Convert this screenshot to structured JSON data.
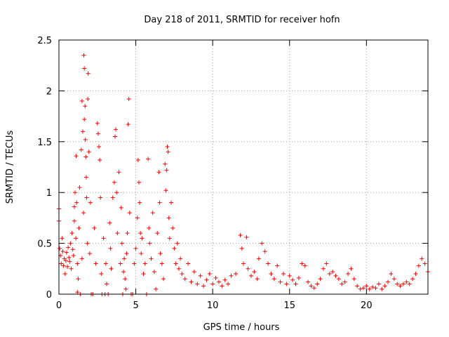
{
  "chart_data": {
    "type": "scatter",
    "title": "Day 218 of 2011, SRMTID for receiver hofn",
    "xlabel": "GPS time / hours",
    "ylabel": "SRMTID / TECUs",
    "xlim": [
      0,
      24
    ],
    "ylim": [
      0,
      2.5
    ],
    "xticks": [
      0,
      5,
      10,
      15,
      20
    ],
    "yticks": [
      0,
      0.5,
      1,
      1.5,
      2,
      2.5
    ],
    "xtick_labels": [
      "0",
      "5",
      "10",
      "15",
      "20"
    ],
    "ytick_labels": [
      "0",
      "0.5",
      "1",
      "1.5",
      "2",
      "2.5"
    ],
    "grid": true,
    "marker": "+",
    "series": [
      {
        "name": "SRMTID",
        "color": "#ff0000",
        "points": [
          [
            0.0,
            0.72
          ],
          [
            0.0,
            0.84
          ],
          [
            0.05,
            0.45
          ],
          [
            0.1,
            0.38
          ],
          [
            0.15,
            0.3
          ],
          [
            0.2,
            0.55
          ],
          [
            0.25,
            0.42
          ],
          [
            0.3,
            0.28
          ],
          [
            0.35,
            0.35
          ],
          [
            0.4,
            0.2
          ],
          [
            0.45,
            0.33
          ],
          [
            0.5,
            0.41
          ],
          [
            0.55,
            0.27
          ],
          [
            0.6,
            0.46
          ],
          [
            0.65,
            0.36
          ],
          [
            0.7,
            0.32
          ],
          [
            0.75,
            0.5
          ],
          [
            0.8,
            0.25
          ],
          [
            0.85,
            0.6
          ],
          [
            0.9,
            0.44
          ],
          [
            0.95,
            0.38
          ],
          [
            1.0,
            0.72
          ],
          [
            1.0,
            0.86
          ],
          [
            1.05,
            1.0
          ],
          [
            1.1,
            0.55
          ],
          [
            1.12,
            1.36
          ],
          [
            1.15,
            0.9
          ],
          [
            1.2,
            0.3
          ],
          [
            1.2,
            0.02
          ],
          [
            1.25,
            0.15
          ],
          [
            1.3,
            0.65
          ],
          [
            1.35,
            1.05
          ],
          [
            1.4,
            0.0
          ],
          [
            1.45,
            1.42
          ],
          [
            1.5,
            0.35
          ],
          [
            1.5,
            1.9
          ],
          [
            1.55,
            1.6
          ],
          [
            1.6,
            0.8
          ],
          [
            1.62,
            2.35
          ],
          [
            1.65,
            2.22
          ],
          [
            1.65,
            1.72
          ],
          [
            1.7,
            1.85
          ],
          [
            1.72,
            1.52
          ],
          [
            1.75,
            1.35
          ],
          [
            1.78,
            1.15
          ],
          [
            1.8,
            0.95
          ],
          [
            1.85,
            0.5
          ],
          [
            1.88,
            1.92
          ],
          [
            1.9,
            2.17
          ],
          [
            1.95,
            1.4
          ],
          [
            2.0,
            0.4
          ],
          [
            2.05,
            0.9
          ],
          [
            2.1,
            0.0
          ],
          [
            2.2,
            0.0
          ],
          [
            2.3,
            0.65
          ],
          [
            2.4,
            0.3
          ],
          [
            2.5,
            1.68
          ],
          [
            2.55,
            1.58
          ],
          [
            2.6,
            1.45
          ],
          [
            2.65,
            1.32
          ],
          [
            2.7,
            0.95
          ],
          [
            2.75,
            0.2
          ],
          [
            2.8,
            0.0
          ],
          [
            2.9,
            0.55
          ],
          [
            3.0,
            0.0
          ],
          [
            3.05,
            0.3
          ],
          [
            3.1,
            0.1
          ],
          [
            3.2,
            0.0
          ],
          [
            3.3,
            0.7
          ],
          [
            3.35,
            0.45
          ],
          [
            3.4,
            0.25
          ],
          [
            3.5,
            0.95
          ],
          [
            3.6,
            1.1
          ],
          [
            3.65,
            1.55
          ],
          [
            3.7,
            1.62
          ],
          [
            3.75,
            1.0
          ],
          [
            3.8,
            0.6
          ],
          [
            3.9,
            1.2
          ],
          [
            4.0,
            0.3
          ],
          [
            4.05,
            0.85
          ],
          [
            4.1,
            0.5
          ],
          [
            4.15,
            0.0
          ],
          [
            4.2,
            0.22
          ],
          [
            4.25,
            0.35
          ],
          [
            4.3,
            0.15
          ],
          [
            4.35,
            0.05
          ],
          [
            4.4,
            0.4
          ],
          [
            4.45,
            0.6
          ],
          [
            4.5,
            1.67
          ],
          [
            4.55,
            1.92
          ],
          [
            4.6,
            0.8
          ],
          [
            4.7,
            0.0
          ],
          [
            4.8,
            0.0
          ],
          [
            4.9,
            0.3
          ],
          [
            5.0,
            0.45
          ],
          [
            5.1,
            0.75
          ],
          [
            5.15,
            1.32
          ],
          [
            5.2,
            1.1
          ],
          [
            5.25,
            0.9
          ],
          [
            5.3,
            0.6
          ],
          [
            5.35,
            0.4
          ],
          [
            5.4,
            0.55
          ],
          [
            5.5,
            0.2
          ],
          [
            5.6,
            0.3
          ],
          [
            5.7,
            0.0
          ],
          [
            5.8,
            1.33
          ],
          [
            5.85,
            0.65
          ],
          [
            5.9,
            0.5
          ],
          [
            6.0,
            0.35
          ],
          [
            6.1,
            0.8
          ],
          [
            6.2,
            0.22
          ],
          [
            6.3,
            0.05
          ],
          [
            6.4,
            0.6
          ],
          [
            6.5,
            1.2
          ],
          [
            6.55,
            0.9
          ],
          [
            6.6,
            0.4
          ],
          [
            6.7,
            0.3
          ],
          [
            6.8,
            0.15
          ],
          [
            6.9,
            1.28
          ],
          [
            6.95,
            1.02
          ],
          [
            7.0,
            1.22
          ],
          [
            7.05,
            1.45
          ],
          [
            7.1,
            1.4
          ],
          [
            7.15,
            0.75
          ],
          [
            7.2,
            0.55
          ],
          [
            7.3,
            0.9
          ],
          [
            7.4,
            0.65
          ],
          [
            7.5,
            0.45
          ],
          [
            7.6,
            0.3
          ],
          [
            7.7,
            0.5
          ],
          [
            7.8,
            0.25
          ],
          [
            7.9,
            0.35
          ],
          [
            8.0,
            0.2
          ],
          [
            8.2,
            0.15
          ],
          [
            8.4,
            0.3
          ],
          [
            8.6,
            0.12
          ],
          [
            8.8,
            0.22
          ],
          [
            9.0,
            0.1
          ],
          [
            9.2,
            0.18
          ],
          [
            9.4,
            0.08
          ],
          [
            9.6,
            0.14
          ],
          [
            9.8,
            0.2
          ],
          [
            10.0,
            0.1
          ],
          [
            10.2,
            0.16
          ],
          [
            10.4,
            0.12
          ],
          [
            10.6,
            0.08
          ],
          [
            10.8,
            0.14
          ],
          [
            11.0,
            0.1
          ],
          [
            11.2,
            0.18
          ],
          [
            11.5,
            0.2
          ],
          [
            11.8,
            0.58
          ],
          [
            11.9,
            0.45
          ],
          [
            12.0,
            0.3
          ],
          [
            12.2,
            0.56
          ],
          [
            12.3,
            0.25
          ],
          [
            12.5,
            0.18
          ],
          [
            12.7,
            0.22
          ],
          [
            12.9,
            0.15
          ],
          [
            13.0,
            0.35
          ],
          [
            13.2,
            0.5
          ],
          [
            13.4,
            0.42
          ],
          [
            13.6,
            0.3
          ],
          [
            13.8,
            0.2
          ],
          [
            14.0,
            0.15
          ],
          [
            14.2,
            0.28
          ],
          [
            14.4,
            0.12
          ],
          [
            14.6,
            0.2
          ],
          [
            14.8,
            0.1
          ],
          [
            15.0,
            0.18
          ],
          [
            15.2,
            0.14
          ],
          [
            15.4,
            0.1
          ],
          [
            15.6,
            0.16
          ],
          [
            15.8,
            0.3
          ],
          [
            16.0,
            0.28
          ],
          [
            16.2,
            0.12
          ],
          [
            16.4,
            0.08
          ],
          [
            16.6,
            0.06
          ],
          [
            16.8,
            0.1
          ],
          [
            17.0,
            0.15
          ],
          [
            17.2,
            0.25
          ],
          [
            17.4,
            0.3
          ],
          [
            17.6,
            0.2
          ],
          [
            17.8,
            0.22
          ],
          [
            18.0,
            0.18
          ],
          [
            18.2,
            0.15
          ],
          [
            18.4,
            0.1
          ],
          [
            18.6,
            0.12
          ],
          [
            18.8,
            0.2
          ],
          [
            19.0,
            0.25
          ],
          [
            19.2,
            0.15
          ],
          [
            19.4,
            0.08
          ],
          [
            19.6,
            0.05
          ],
          [
            19.8,
            0.06
          ],
          [
            20.0,
            0.08
          ],
          [
            20.2,
            0.05
          ],
          [
            20.4,
            0.07
          ],
          [
            20.6,
            0.06
          ],
          [
            20.8,
            0.1
          ],
          [
            21.0,
            0.05
          ],
          [
            21.2,
            0.08
          ],
          [
            21.4,
            0.12
          ],
          [
            21.6,
            0.2
          ],
          [
            21.8,
            0.15
          ],
          [
            22.0,
            0.1
          ],
          [
            22.2,
            0.08
          ],
          [
            22.4,
            0.1
          ],
          [
            22.6,
            0.12
          ],
          [
            22.8,
            0.1
          ],
          [
            23.0,
            0.15
          ],
          [
            23.2,
            0.2
          ],
          [
            23.4,
            0.28
          ],
          [
            23.6,
            0.35
          ],
          [
            23.8,
            0.3
          ],
          [
            24.0,
            0.22
          ]
        ]
      }
    ]
  }
}
